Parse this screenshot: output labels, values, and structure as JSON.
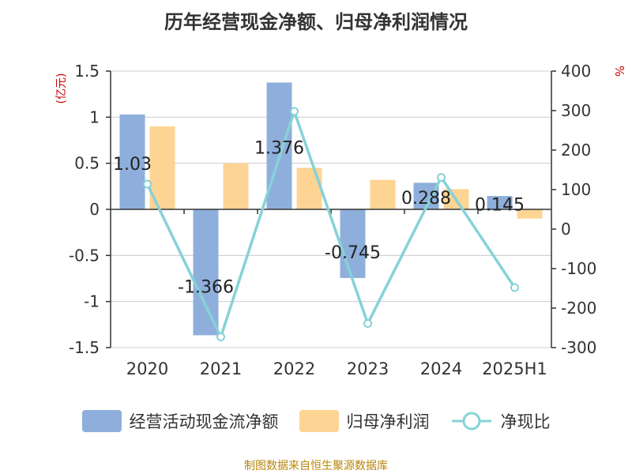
{
  "colors": {
    "bar_primary": "#8EAFDB",
    "bar_secondary": "#FDD493",
    "line": "#86D2D8",
    "axis_unit": "#CC0000",
    "source": "#B8860B",
    "grid": "#CCCCCC",
    "axis": "#333333"
  },
  "chart_data": {
    "type": "bar",
    "title": "历年经营现金净额、归母净利润情况",
    "categories": [
      "2020",
      "2021",
      "2022",
      "2023",
      "2024",
      "2025H1"
    ],
    "left_axis": {
      "unit": "(亿元)",
      "ylim": [
        -1.5,
        1.5
      ],
      "ticks": [
        "-1.5",
        "-1",
        "-0.5",
        "0",
        "0.5",
        "1",
        "1.5"
      ]
    },
    "right_axis": {
      "unit": "%",
      "ylim": [
        -300,
        400
      ],
      "ticks": [
        "-300",
        "-200",
        "-100",
        "0",
        "100",
        "200",
        "300",
        "400"
      ]
    },
    "series": [
      {
        "name": "经营活动现金流净额",
        "type": "bar",
        "axis": "left",
        "values": [
          1.03,
          -1.366,
          1.376,
          -0.745,
          0.288,
          0.145
        ],
        "labels": [
          "1.03",
          "-1.366",
          "1.376",
          "-0.745",
          "0.288",
          "0.145"
        ]
      },
      {
        "name": "归母净利润",
        "type": "bar",
        "axis": "left",
        "values": [
          0.9,
          0.5,
          0.45,
          0.32,
          0.22,
          -0.1
        ]
      },
      {
        "name": "净现比",
        "type": "line",
        "axis": "right",
        "values": [
          114,
          -273,
          298,
          -239,
          131,
          -148
        ]
      }
    ],
    "grid": true,
    "legend_position": "bottom"
  },
  "source_note": "制图数据来自恒生聚源数据库"
}
